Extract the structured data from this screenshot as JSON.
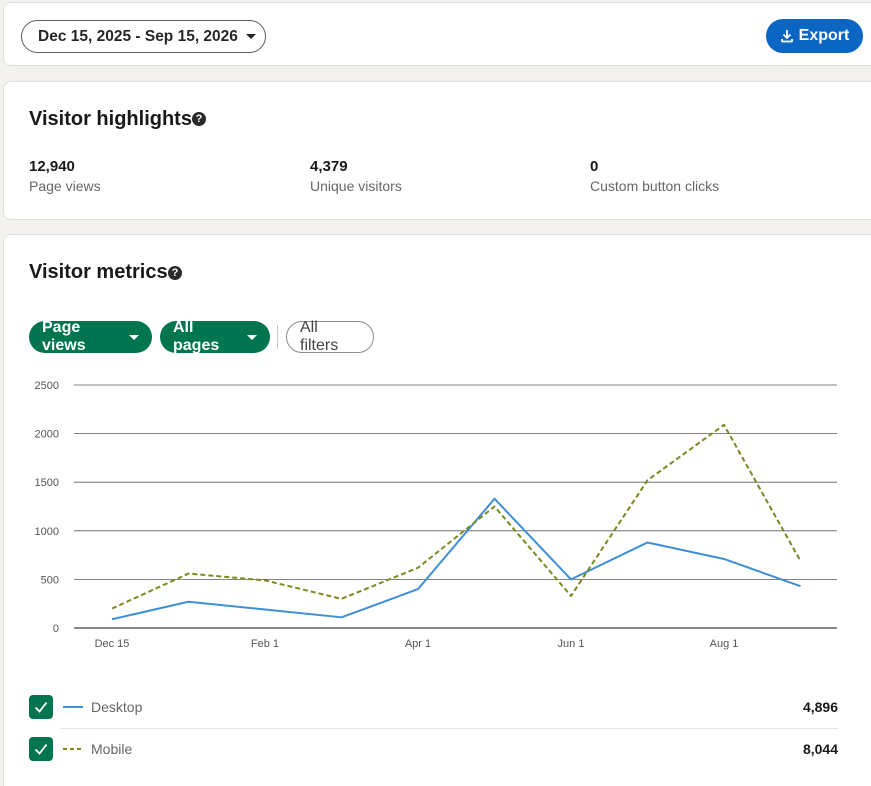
{
  "toolbar": {
    "date_range": "Dec 15, 2025 - Sep 15, 2026",
    "export_label": "Export"
  },
  "highlights": {
    "title": "Visitor highlights",
    "help": "?",
    "stats": [
      {
        "value": "12,940",
        "label": "Page views"
      },
      {
        "value": "4,379",
        "label": "Unique visitors"
      },
      {
        "value": "0",
        "label": "Custom button clicks"
      }
    ]
  },
  "metrics": {
    "title": "Visitor metrics",
    "help": "?",
    "filters": {
      "metric": "Page views",
      "pages": "All pages",
      "all_filters": "All filters"
    },
    "legend": [
      {
        "label": "Desktop",
        "value": "4,896"
      },
      {
        "label": "Mobile",
        "value": "8,044"
      }
    ]
  },
  "colors": {
    "desktop": "#3d8fd6",
    "mobile": "#7a8a1e",
    "accent_green": "#01754f",
    "accent_blue": "#0a66c2"
  },
  "chart_data": {
    "type": "line",
    "x_tick_labels": [
      "Dec 15",
      "Feb 1",
      "Apr 1",
      "Jun 1",
      "Aug 1"
    ],
    "y_ticks": [
      0,
      500,
      1000,
      1500,
      2000,
      2500
    ],
    "ylim": [
      0,
      2500
    ],
    "series": [
      {
        "name": "Desktop",
        "style": "solid",
        "values": [
          90,
          270,
          190,
          110,
          400,
          1330,
          500,
          880,
          710,
          430
        ]
      },
      {
        "name": "Mobile",
        "style": "dashed",
        "values": [
          200,
          560,
          490,
          300,
          620,
          1250,
          330,
          1520,
          2090,
          690
        ]
      }
    ],
    "grid": true,
    "legend": "bottom"
  }
}
